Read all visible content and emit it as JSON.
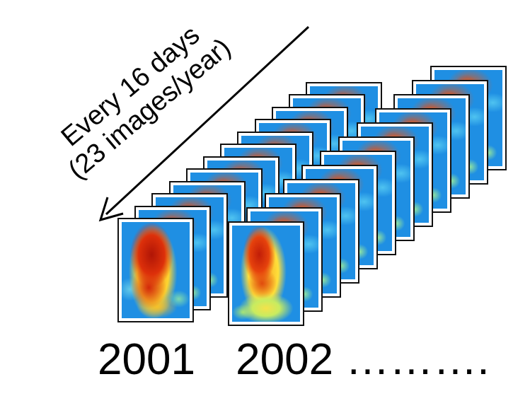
{
  "annotation": {
    "line1": "Every 16 days",
    "line2": "(23 images/year)"
  },
  "years": {
    "first": "2001",
    "second": "2002",
    "continuation": "………."
  },
  "stacks": [
    {
      "year": "2001",
      "frame_count": 12
    },
    {
      "year": "2002",
      "frame_count": 12
    }
  ],
  "colors": {
    "background": "#ffffff",
    "map_water": "#1f8fe3",
    "map_hot": "#c21b08",
    "map_mid": "#ffe03a",
    "arrow": "#000000"
  }
}
